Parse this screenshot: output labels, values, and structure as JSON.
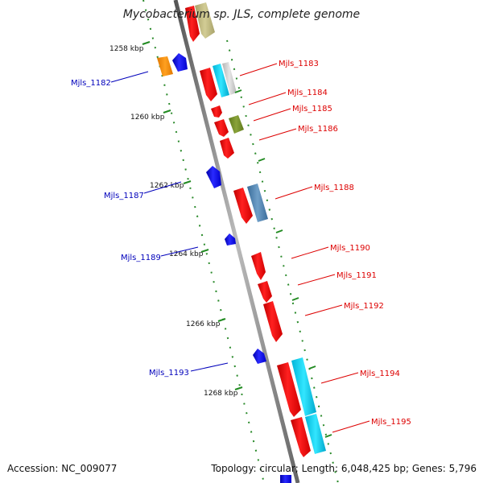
{
  "title": "Mycobacterium sp. JLS, complete genome",
  "footer": {
    "accession": "Accession: NC_009077",
    "summary": "Topology: circular; Length: 6,048,425 bp; Genes: 5,796"
  },
  "colors": {
    "forward_strand": "#ff0000",
    "reverse_strand": "#0000ee",
    "label_forward": "#dd0000",
    "label_reverse": "#0000bb",
    "backbone": "#888888",
    "tick": "#228b22"
  },
  "ticks": [
    {
      "label": "1258 kbp"
    },
    {
      "label": "1260 kbp"
    },
    {
      "label": "1262 kbp"
    },
    {
      "label": "1264 kbp"
    },
    {
      "label": "1266 kbp"
    },
    {
      "label": "1268 kbp"
    }
  ],
  "gene_labels": [
    {
      "id": "mjls-1182",
      "text": "Mjls_1182",
      "strand": "reverse"
    },
    {
      "id": "mjls-1183",
      "text": "Mjls_1183",
      "strand": "forward"
    },
    {
      "id": "mjls-1184",
      "text": "Mjls_1184",
      "strand": "forward"
    },
    {
      "id": "mjls-1185",
      "text": "Mjls_1185",
      "strand": "forward"
    },
    {
      "id": "mjls-1186",
      "text": "Mjls_1186",
      "strand": "forward"
    },
    {
      "id": "mjls-1187",
      "text": "Mjls_1187",
      "strand": "reverse"
    },
    {
      "id": "mjls-1188",
      "text": "Mjls_1188",
      "strand": "forward"
    },
    {
      "id": "mjls-1189",
      "text": "Mjls_1189",
      "strand": "reverse"
    },
    {
      "id": "mjls-1190",
      "text": "Mjls_1190",
      "strand": "forward"
    },
    {
      "id": "mjls-1191",
      "text": "Mjls_1191",
      "strand": "forward"
    },
    {
      "id": "mjls-1192",
      "text": "Mjls_1192",
      "strand": "forward"
    },
    {
      "id": "mjls-1193",
      "text": "Mjls_1193",
      "strand": "reverse"
    },
    {
      "id": "mjls-1194",
      "text": "Mjls_1194",
      "strand": "forward"
    },
    {
      "id": "mjls-1195",
      "text": "Mjls_1195",
      "strand": "forward"
    }
  ]
}
